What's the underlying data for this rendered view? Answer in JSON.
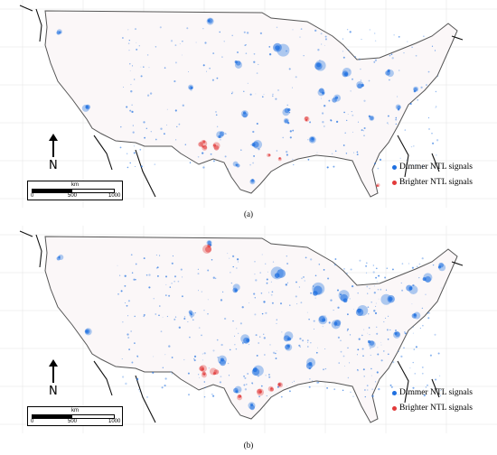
{
  "colors": {
    "dimmer": "#1e6fe0",
    "brighter": "#e23a3a",
    "graticule": "#e6e6e6",
    "outline": "#555555"
  },
  "panels": [
    {
      "caption": "(a)",
      "north_label": "N",
      "scale": {
        "unit": "km",
        "ticks": [
          "0",
          "500",
          "1000"
        ]
      },
      "legend": [
        {
          "label": "Dimmer NTL signals",
          "color": "#1e6fe0"
        },
        {
          "label": "Brighter NTL signals",
          "color": "#e23a3a"
        }
      ]
    },
    {
      "caption": "(b)",
      "north_label": "N",
      "scale": {
        "unit": "km",
        "ticks": [
          "0",
          "500",
          "1000"
        ]
      },
      "legend": [
        {
          "label": "Dimmer NTL signals",
          "color": "#1e6fe0"
        },
        {
          "label": "Brighter NTL signals",
          "color": "#e23a3a"
        }
      ]
    }
  ]
}
